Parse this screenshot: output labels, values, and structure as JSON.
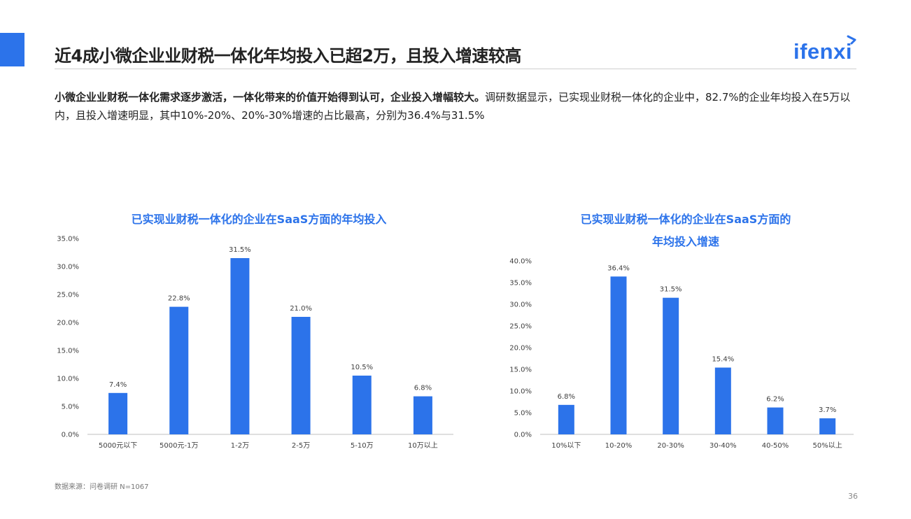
{
  "header": {
    "title": "近4成小微企业业财税一体化年均投入已超2万，且投入增速较高",
    "logo_text": "ifenxi"
  },
  "summary": {
    "bold": "小微企业业财税一体化需求逐步激活，一体化带来的价值开始得到认可，企业投入增幅较大。",
    "body": "调研数据显示，已实现业财税一体化的企业中，82.7%的企业年均投入在5万以内，且投入增速明显，其中10%-20%、20%-30%增速的占比最高，分别为36.4%与31.5%"
  },
  "colors": {
    "accent": "#2c73ea",
    "bar": "#2c73ea",
    "axis": "#bfbfbf",
    "tick_text": "#404040"
  },
  "chart_data": [
    {
      "type": "bar",
      "title": "已实现业财税一体化的企业在SaaS方面的年均投入",
      "categories": [
        "5000元以下",
        "5000元-1万",
        "1-2万",
        "2-5万",
        "5-10万",
        "10万以上"
      ],
      "values": [
        7.4,
        22.8,
        31.5,
        21.0,
        10.5,
        6.8
      ],
      "value_labels": [
        "7.4%",
        "22.8%",
        "31.5%",
        "21.0%",
        "10.5%",
        "6.8%"
      ],
      "yticks": [
        "0.0%",
        "5.0%",
        "10.0%",
        "15.0%",
        "20.0%",
        "25.0%",
        "30.0%",
        "35.0%"
      ],
      "ylim": [
        0,
        35
      ],
      "grid": false,
      "xlabel": "",
      "ylabel": ""
    },
    {
      "type": "bar",
      "title": "已实现业财税一体化的企业在SaaS方面的",
      "subtitle": "年均投入增速",
      "categories": [
        "10%以下",
        "10-20%",
        "20-30%",
        "30-40%",
        "40-50%",
        "50%以上"
      ],
      "values": [
        6.8,
        36.4,
        31.5,
        15.4,
        6.2,
        3.7
      ],
      "value_labels": [
        "6.8%",
        "36.4%",
        "31.5%",
        "15.4%",
        "6.2%",
        "3.7%"
      ],
      "yticks": [
        "0.0%",
        "5.0%",
        "10.0%",
        "15.0%",
        "20.0%",
        "25.0%",
        "30.0%",
        "35.0%",
        "40.0%"
      ],
      "ylim": [
        0,
        40
      ],
      "grid": false,
      "xlabel": "",
      "ylabel": ""
    }
  ],
  "footer": {
    "source": "数据来源：问卷调研 N=1067",
    "page": "36"
  }
}
